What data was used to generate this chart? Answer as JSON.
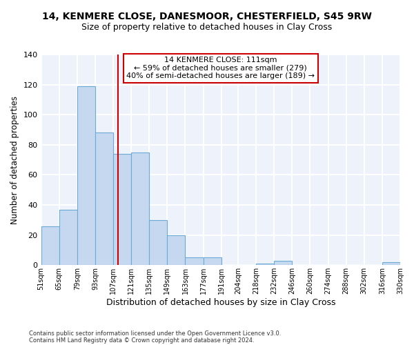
{
  "title_line1": "14, KENMERE CLOSE, DANESMOOR, CHESTERFIELD, S45 9RW",
  "title_line2": "Size of property relative to detached houses in Clay Cross",
  "xlabel": "Distribution of detached houses by size in Clay Cross",
  "ylabel": "Number of detached properties",
  "annotation_line1": "14 KENMERE CLOSE: 111sqm",
  "annotation_line2": "← 59% of detached houses are smaller (279)",
  "annotation_line3": "40% of semi-detached houses are larger (189) →",
  "property_size_sqm": 111,
  "bin_edges": [
    51,
    65,
    79,
    93,
    107,
    121,
    135,
    149,
    163,
    177,
    191,
    204,
    218,
    232,
    246,
    260,
    274,
    288,
    302,
    316,
    330
  ],
  "bin_labels": [
    "51sqm",
    "65sqm",
    "79sqm",
    "93sqm",
    "107sqm",
    "121sqm",
    "135sqm",
    "149sqm",
    "163sqm",
    "177sqm",
    "191sqm",
    "204sqm",
    "218sqm",
    "232sqm",
    "246sqm",
    "260sqm",
    "274sqm",
    "288sqm",
    "302sqm",
    "316sqm",
    "330sqm"
  ],
  "counts": [
    26,
    37,
    119,
    88,
    74,
    75,
    30,
    20,
    5,
    5,
    0,
    0,
    1,
    3,
    0,
    0,
    0,
    0,
    0,
    2
  ],
  "bar_color": "#c5d8f0",
  "bar_edge_color": "#6aaad4",
  "vline_color": "#cc0000",
  "vline_x": 111,
  "ylim": [
    0,
    140
  ],
  "yticks": [
    0,
    20,
    40,
    60,
    80,
    100,
    120,
    140
  ],
  "background_color": "#eef2fa",
  "grid_color": "#ffffff",
  "footer_line1": "Contains HM Land Registry data © Crown copyright and database right 2024.",
  "footer_line2": "Contains public sector information licensed under the Open Government Licence v3.0."
}
